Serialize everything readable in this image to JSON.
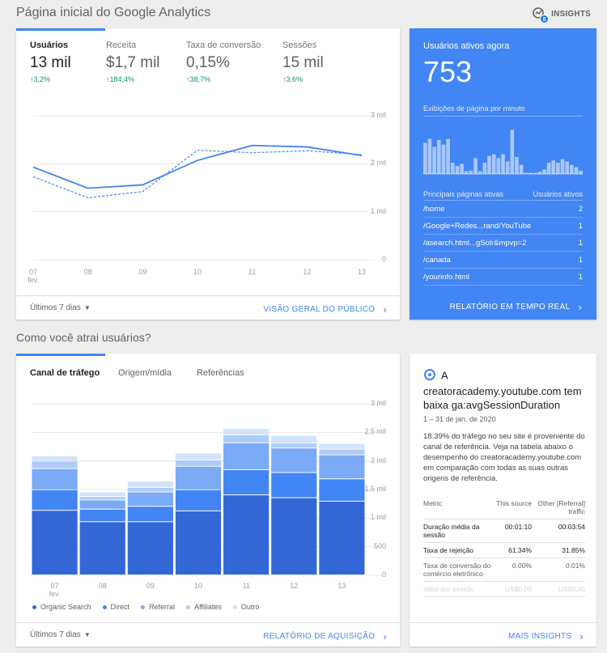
{
  "header": {
    "title": "Página inicial do Google Analytics",
    "insights_label": "INSIGHTS",
    "insights_count": "8"
  },
  "overview": {
    "metrics": [
      {
        "label": "Usuários",
        "value": "13 mil",
        "change": "↑3,2%"
      },
      {
        "label": "Receita",
        "value": "$1,7 mil",
        "change": "↑184,4%"
      },
      {
        "label": "Taxa de conversão",
        "value": "0,15%",
        "change": "↑38,7%"
      },
      {
        "label": "Sessões",
        "value": "15 mil",
        "change": "↑3,6%"
      }
    ],
    "range_label": "Últimos 7 dias",
    "link_label": "VISÃO GERAL DO PÚBLICO"
  },
  "realtime": {
    "title": "Usuários ativos agora",
    "count": "753",
    "subtitle": "Exibições de página por minuto",
    "table_col1": "Principais páginas ativas",
    "table_col2": "Usuários ativos",
    "pages": [
      {
        "path": "/home",
        "users": "2"
      },
      {
        "path": "/Google+Redes...rand/YouTube",
        "users": "1"
      },
      {
        "path": "/asearch.html...gSolr&mpvp=2",
        "users": "1"
      },
      {
        "path": "/canada",
        "users": "1"
      },
      {
        "path": "/yourinfo.html",
        "users": "1"
      }
    ],
    "bars": [
      0.55,
      0.62,
      0.48,
      0.6,
      0.52,
      0.62,
      0.2,
      0.14,
      0.18,
      0.05,
      0.06,
      0.28,
      0.05,
      0.2,
      0.32,
      0.35,
      0.28,
      0.35,
      0.22,
      0.78,
      0.3,
      0.16,
      0.02,
      0.02,
      0.02,
      0.04,
      0.08,
      0.2,
      0.24,
      0.2,
      0.26,
      0.22,
      0.16,
      0.12,
      0.06
    ],
    "link_label": "RELATÓRIO EM TEMPO REAL"
  },
  "acquisition": {
    "section_title": "Como você atrai usuários?",
    "tabs": [
      "Canal de tráfego",
      "Origem/mídia",
      "Referências"
    ],
    "legend": [
      "Organic Search",
      "Direct",
      "Referral",
      "Affiliates",
      "Outro"
    ],
    "range_label": "Últimos 7 dias",
    "link_label": "RELATÓRIO DE AQUISIÇÃO"
  },
  "insight": {
    "badge": "A",
    "headline": "creatoracademy.youtube.com tem baixa ga:avgSessionDuration",
    "date_range": "1 – 31 de jan. de 2020",
    "body": "18.39% do tráfego no seu site é proveniente do canal de referência. Veja na tabela abaixo o desempenho do creatoracademy.youtube.com em comparação com todas as suas outras origens de referência.",
    "table_head": [
      "Metric",
      "This source",
      "Other [Referral] traffic"
    ],
    "rows": [
      [
        "Duração média da sessão",
        "00:01:10",
        "00:03:54"
      ],
      [
        "Taxa de rejeição",
        "61.34%",
        "31.85%"
      ],
      [
        "Taxa de conversão do comércio eletrônico",
        "0.00%",
        "0.01%"
      ],
      [
        "Valor por sessão",
        "US$0,00",
        "US$0,00"
      ]
    ],
    "link_label": "MAIS INSIGHTS"
  },
  "colors": {
    "accent": "#4285f4",
    "positive": "#0f9d58"
  },
  "chart_data": [
    {
      "type": "line",
      "categories": [
        "07 fev.",
        "08",
        "09",
        "10",
        "11",
        "12",
        "13"
      ],
      "series": [
        {
          "values": [
            1930,
            1490,
            1560,
            2070,
            2380,
            2350,
            2170
          ]
        },
        {
          "values": [
            1730,
            1290,
            1420,
            2280,
            2230,
            2270,
            2190
          ]
        }
      ],
      "ylim": [
        0,
        3000
      ],
      "yticks": [
        "0",
        "1 mil",
        "2 mil",
        "3 mil"
      ],
      "grid": true
    },
    {
      "type": "bar",
      "stacked": true,
      "categories": [
        "07 fev.",
        "08",
        "09",
        "10",
        "11",
        "12",
        "13"
      ],
      "series": [
        {
          "name": "Organic Search",
          "values": [
            1130,
            930,
            930,
            1120,
            1400,
            1350,
            1290
          ]
        },
        {
          "name": "Direct",
          "values": [
            360,
            220,
            270,
            370,
            440,
            440,
            390
          ]
        },
        {
          "name": "Referral",
          "values": [
            370,
            160,
            250,
            410,
            470,
            430,
            420
          ]
        },
        {
          "name": "Affiliates",
          "values": [
            130,
            60,
            80,
            110,
            140,
            90,
            100
          ]
        },
        {
          "name": "Outro",
          "values": [
            90,
            80,
            110,
            120,
            110,
            130,
            100
          ]
        }
      ],
      "ylim": [
        0,
        3000
      ],
      "yticks": [
        "0",
        "500",
        "1 mil",
        "1,5 mil",
        "2 mil",
        "2,5 mil",
        "3 mil"
      ]
    }
  ]
}
